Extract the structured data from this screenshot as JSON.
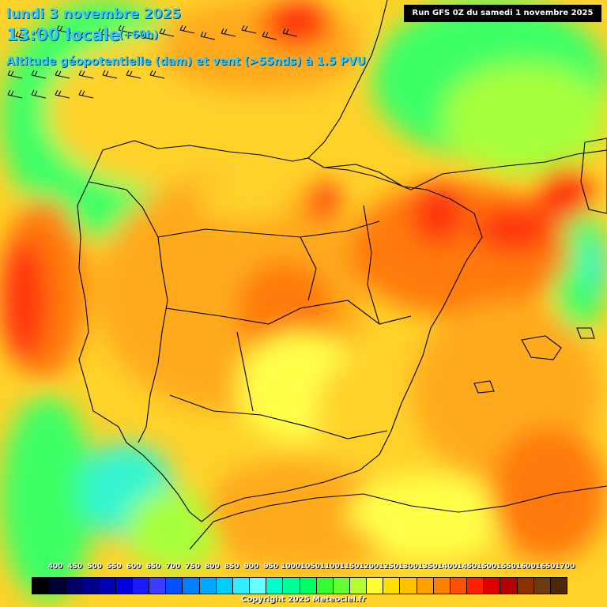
{
  "header": {
    "date_line": "lundi 3 novembre 2025",
    "time_line": "13:00 locale",
    "lead_time": "(+60h)",
    "field_line": "Altitude géopotentielle (dam) et vent (>55nds) à 1.5 PVU",
    "run_info": "Run GFS 0Z du samedi 1 novembre 2025"
  },
  "legend": {
    "labels": [
      "400",
      "450",
      "500",
      "550",
      "600",
      "650",
      "700",
      "750",
      "800",
      "850",
      "900",
      "950",
      "1000",
      "1050",
      "1100",
      "1150",
      "1200",
      "1250",
      "1300",
      "1350",
      "1400",
      "1450",
      "1500",
      "1550",
      "1600",
      "1650",
      "1700"
    ],
    "colors": [
      "#000000",
      "#000033",
      "#000066",
      "#00008c",
      "#0000b4",
      "#0000e0",
      "#1a1aff",
      "#3c3cff",
      "#0050ff",
      "#0080ff",
      "#00a8ff",
      "#00ccff",
      "#33ecff",
      "#66ffff",
      "#00ffcc",
      "#00ff99",
      "#00ff66",
      "#33ff33",
      "#66ff33",
      "#b4ff33",
      "#ffff33",
      "#ffe000",
      "#ffc000",
      "#ffa000",
      "#ff8000",
      "#ff5000",
      "#ff2000",
      "#e00000",
      "#b40000",
      "#8c3000",
      "#6b3a10",
      "#4a2808"
    ]
  },
  "footer": {
    "copyright": "Copyright 2025 Meteociel.fr"
  },
  "field_palette": {
    "cyan": "#35f5d0",
    "green": "#3cff66",
    "lightgreen": "#a6ff3a",
    "yellow": "#ffff4a",
    "lightorange": "#ffd22a",
    "orange": "#ffaa1e",
    "darkorange": "#ff7a10",
    "red": "#ff3410",
    "crimson": "#e80a20"
  }
}
